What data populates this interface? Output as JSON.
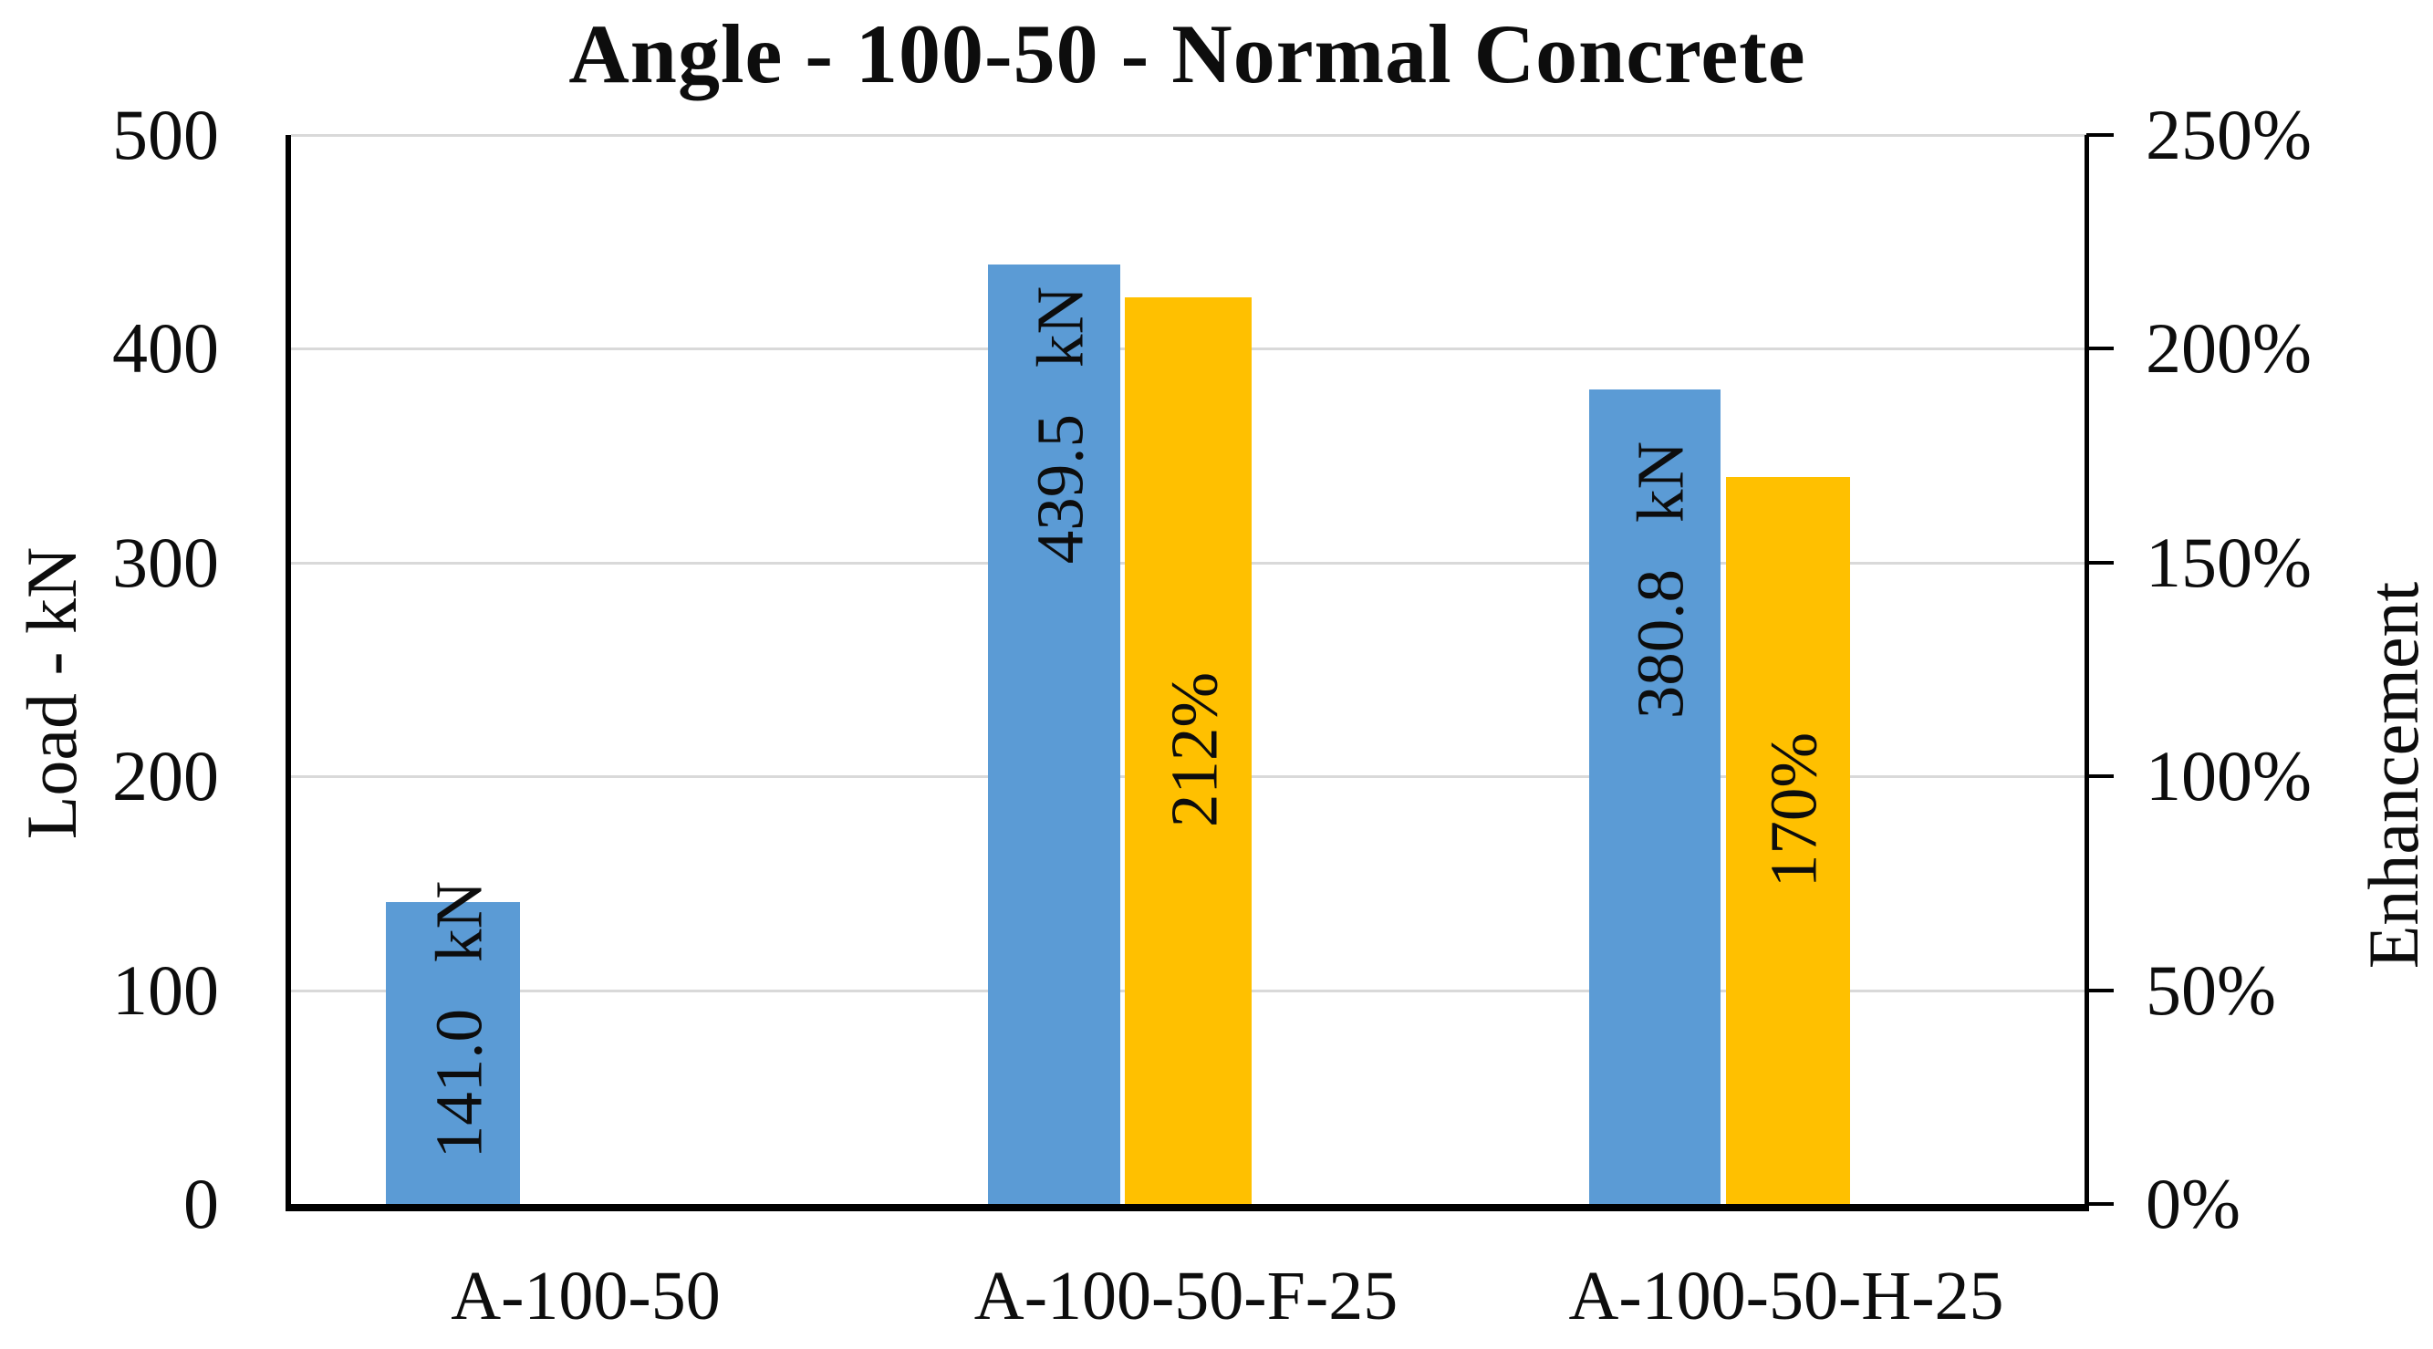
{
  "chart_data": {
    "type": "bar",
    "title": "Angle - 100-50 - Normal Concrete",
    "categories": [
      "A-100-50",
      "A-100-50-F-25",
      "A-100-50-H-25"
    ],
    "series": [
      {
        "name": "Load",
        "unit": "kN",
        "axis": "left",
        "color": "#5B9BD5",
        "values": [
          141.0,
          439.5,
          380.8
        ],
        "data_labels": [
          "141.0 kN",
          "439.5 kN",
          "380.8 kN"
        ]
      },
      {
        "name": "Enhancement",
        "unit": "%",
        "axis": "right",
        "color": "#FFC000",
        "values": [
          null,
          212,
          170
        ],
        "data_labels": [
          null,
          "212%",
          "170%"
        ]
      }
    ],
    "left_axis": {
      "title": "Load - kN",
      "ylim": [
        0,
        500
      ],
      "tick_labels_top_to_bottom": [
        "500",
        "400",
        "300",
        "200",
        "100",
        "0"
      ]
    },
    "right_axis": {
      "title": "Enhancement",
      "ylim": [
        0,
        250
      ],
      "tick_labels_top_to_bottom": [
        "250%",
        "200%",
        "150%",
        "100%",
        "50%",
        "0%"
      ]
    },
    "grid": true,
    "legend": "none"
  },
  "colors": {
    "load_bar": "#5B9BD5",
    "enhancement_bar": "#FFC000",
    "gridline": "#D9D9D9",
    "axis_line": "#000000",
    "text": "#0D0D0D",
    "background": "#FFFFFF"
  }
}
